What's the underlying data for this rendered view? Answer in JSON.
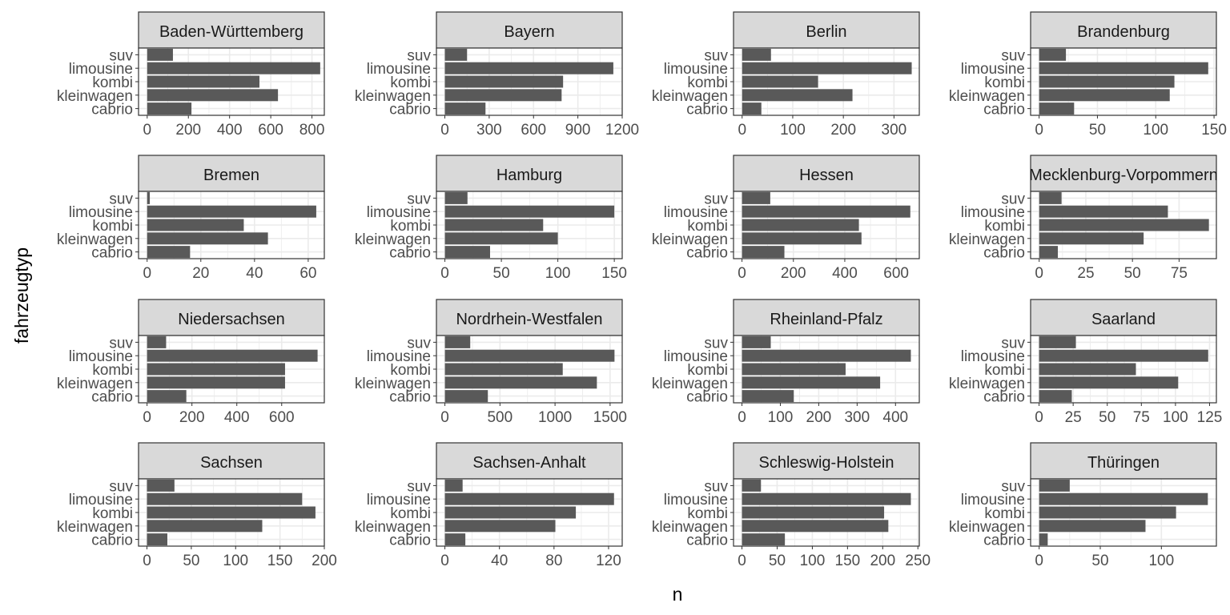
{
  "chart_data": {
    "type": "bar",
    "orientation": "horizontal",
    "layout": "faceted 4x4 grid, free x scales",
    "xlabel": "n",
    "ylabel": "fahrzeugtyp",
    "categories": [
      "suv",
      "limousine",
      "kombi",
      "kleinwagen",
      "cabrio"
    ],
    "grid": true,
    "colors": {
      "bar": "#595959",
      "strip": "#d9d9d9",
      "border": "#333333",
      "grid": "#ebebeb"
    },
    "facets": [
      {
        "name": "Baden-Württemberg",
        "values": [
          125,
          840,
          545,
          635,
          215
        ],
        "xlim": [
          -42,
          860
        ],
        "ticks": [
          0,
          200,
          400,
          600,
          800
        ]
      },
      {
        "name": "Bayern",
        "values": [
          150,
          1140,
          800,
          790,
          275
        ],
        "xlim": [
          -57,
          1200
        ],
        "ticks": [
          0,
          300,
          600,
          900,
          1200
        ]
      },
      {
        "name": "Berlin",
        "values": [
          57,
          335,
          150,
          218,
          38
        ],
        "xlim": [
          -17,
          350
        ],
        "ticks": [
          0,
          100,
          200,
          300
        ]
      },
      {
        "name": "Brandenburg",
        "values": [
          23,
          145,
          116,
          112,
          30
        ],
        "xlim": [
          -7.3,
          152
        ],
        "ticks": [
          0,
          50,
          100,
          150
        ]
      },
      {
        "name": "Bremen",
        "values": [
          1,
          63,
          36,
          45,
          16
        ],
        "xlim": [
          -3.2,
          66
        ],
        "ticks": [
          0,
          20,
          40,
          60
        ]
      },
      {
        "name": "Hamburg",
        "values": [
          20,
          150,
          87,
          100,
          40
        ],
        "xlim": [
          -7.5,
          157
        ],
        "ticks": [
          0,
          50,
          100,
          150
        ]
      },
      {
        "name": "Hessen",
        "values": [
          110,
          655,
          455,
          465,
          165
        ],
        "xlim": [
          -33,
          690
        ],
        "ticks": [
          0,
          200,
          400,
          600
        ]
      },
      {
        "name": "Mecklenburg-Vorpommern",
        "values": [
          12,
          69,
          91,
          56,
          10
        ],
        "xlim": [
          -4.6,
          95
        ],
        "ticks": [
          0,
          25,
          50,
          75
        ]
      },
      {
        "name": "Niedersachsen",
        "values": [
          85,
          760,
          615,
          615,
          175
        ],
        "xlim": [
          -38,
          790
        ],
        "ticks": [
          0,
          200,
          400,
          600
        ]
      },
      {
        "name": "Nordrhein-Westfalen",
        "values": [
          230,
          1540,
          1070,
          1380,
          390
        ],
        "xlim": [
          -77,
          1610
        ],
        "ticks": [
          0,
          500,
          1000,
          1500
        ]
      },
      {
        "name": "Rheinland-Pfalz",
        "values": [
          75,
          440,
          270,
          360,
          135
        ],
        "xlim": [
          -22,
          462
        ],
        "ticks": [
          0,
          100,
          200,
          300,
          400
        ]
      },
      {
        "name": "Saarland",
        "values": [
          27,
          124,
          71,
          102,
          24
        ],
        "xlim": [
          -6.2,
          130
        ],
        "ticks": [
          0,
          25,
          50,
          75,
          100,
          125
        ]
      },
      {
        "name": "Sachsen",
        "values": [
          31,
          175,
          190,
          130,
          23
        ],
        "xlim": [
          -9.5,
          200
        ],
        "ticks": [
          0,
          50,
          100,
          150,
          200
        ]
      },
      {
        "name": "Sachsen-Anhalt",
        "values": [
          13,
          124,
          96,
          81,
          15
        ],
        "xlim": [
          -6.2,
          130
        ],
        "ticks": [
          0,
          40,
          80,
          120
        ]
      },
      {
        "name": "Schleswig-Holstein",
        "values": [
          27,
          240,
          202,
          208,
          61
        ],
        "xlim": [
          -12,
          252
        ],
        "ticks": [
          0,
          50,
          100,
          150,
          200,
          250
        ]
      },
      {
        "name": "Thüringen",
        "values": [
          25,
          138,
          112,
          87,
          7
        ],
        "xlim": [
          -7,
          145
        ],
        "ticks": [
          0,
          50,
          100
        ]
      }
    ]
  }
}
